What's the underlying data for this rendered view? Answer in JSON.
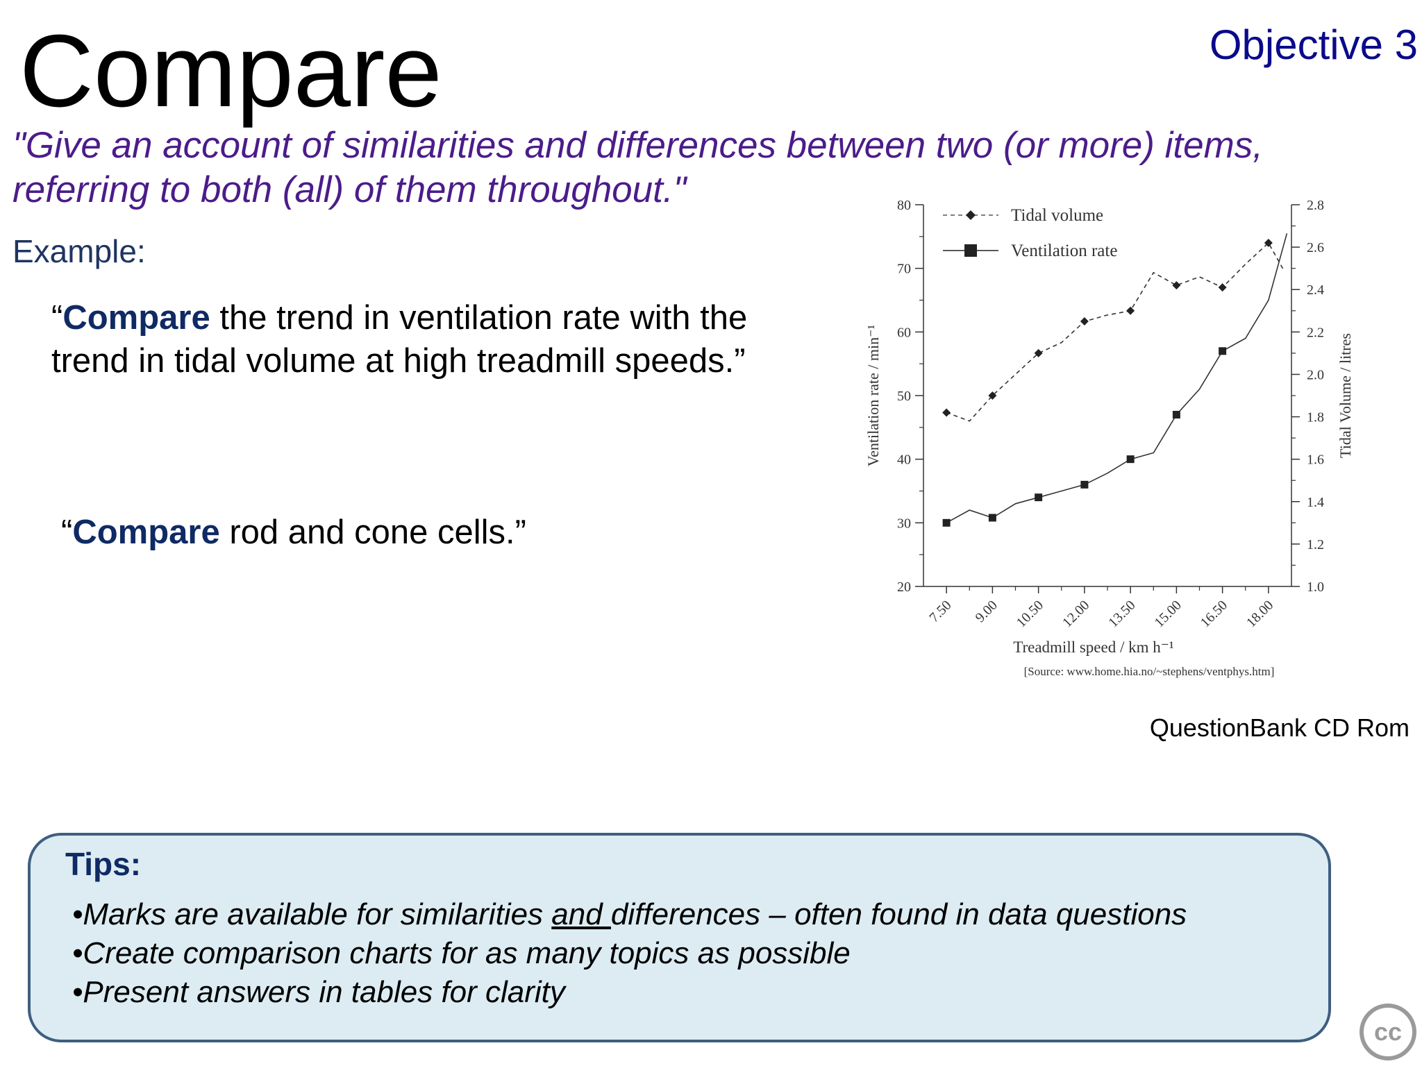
{
  "slide": {
    "title": "Compare",
    "objective": "Objective 3",
    "definition": "\"Give an account of similarities and differences between two (or more) items, referring to both (all) of them throughout.\"",
    "example_label": "Example:",
    "question1": {
      "open_quote": "“",
      "keyword": "Compare",
      "rest": " the trend in ventilation rate with the trend in tidal volume at high treadmill speeds.”"
    },
    "question2": {
      "open_quote": "“",
      "keyword": "Compare",
      "rest": " rod and cone cells.”"
    },
    "source_credit": "QuestionBank CD Rom"
  },
  "tips": {
    "title": "Tips:",
    "item1_before": "•Marks are available for similarities ",
    "item1_underlined": "and ",
    "item1_after": "differences – often found in data questions",
    "item2": "•Create comparison  charts for as many topics as possible",
    "item3": "•Present answers in tables for clarity"
  },
  "badge": {
    "text": "cc"
  },
  "chart_data": {
    "type": "line",
    "title": "",
    "xlabel": "Treadmill speed / km h⁻¹",
    "ylabel": "Ventilation rate / min⁻¹",
    "y2label": "Tidal Volume / litres",
    "source": "[Source: www.home.hia.no/~stephens/ventphys.htm]",
    "xlim": [
      6.75,
      18.75
    ],
    "ylim": [
      20,
      80
    ],
    "y2lim": [
      1.0,
      2.8
    ],
    "x_ticks": [
      "7.50",
      "9.00",
      "10.50",
      "12.00",
      "13.50",
      "15.00",
      "16.50",
      "18.00"
    ],
    "x_tick_values": [
      7.5,
      9.0,
      10.5,
      12.0,
      13.5,
      15.0,
      16.5,
      18.0
    ],
    "y_ticks": [
      "20",
      "30",
      "40",
      "50",
      "60",
      "70",
      "80"
    ],
    "y_tick_values": [
      20,
      30,
      40,
      50,
      60,
      70,
      80
    ],
    "y2_ticks": [
      "1.0",
      "1.2",
      "1.4",
      "1.6",
      "1.8",
      "2.0",
      "2.2",
      "2.4",
      "2.6",
      "2.8"
    ],
    "y2_tick_values": [
      1.0,
      1.2,
      1.4,
      1.6,
      1.8,
      2.0,
      2.2,
      2.4,
      2.6,
      2.8
    ],
    "legend_position": "top-left",
    "series": [
      {
        "name": "Tidal volume",
        "axis": "right",
        "style": "dashed",
        "marker": "diamond",
        "x": [
          7.5,
          8.25,
          9.0,
          9.75,
          10.5,
          11.25,
          12.0,
          12.75,
          13.5,
          14.25,
          15.0,
          15.75,
          16.5,
          17.25,
          18.0,
          18.5
        ],
        "values": [
          1.82,
          1.78,
          1.9,
          2.0,
          2.1,
          2.15,
          2.25,
          2.28,
          2.3,
          2.48,
          2.42,
          2.46,
          2.41,
          2.52,
          2.62,
          2.49
        ],
        "marker_x": [
          7.5,
          9.0,
          10.5,
          12.0,
          13.5,
          15.0,
          16.5,
          18.0
        ],
        "marker_values": [
          1.82,
          1.9,
          2.1,
          2.25,
          2.3,
          2.42,
          2.41,
          2.62
        ]
      },
      {
        "name": "Ventilation rate",
        "axis": "left",
        "style": "solid",
        "marker": "square",
        "x": [
          7.5,
          8.25,
          9.0,
          9.75,
          10.5,
          11.25,
          12.0,
          12.75,
          13.5,
          14.25,
          15.0,
          15.75,
          16.5,
          17.25,
          18.0,
          18.6
        ],
        "values": [
          30,
          32,
          30.8,
          33,
          34,
          35,
          36,
          37.8,
          40,
          41,
          47,
          51,
          57,
          59,
          65,
          75.5
        ],
        "marker_x": [
          7.5,
          9.0,
          10.5,
          12.0,
          13.5,
          15.0,
          16.5
        ],
        "marker_values": [
          30,
          30.8,
          34,
          36,
          40,
          47,
          57
        ]
      }
    ]
  }
}
